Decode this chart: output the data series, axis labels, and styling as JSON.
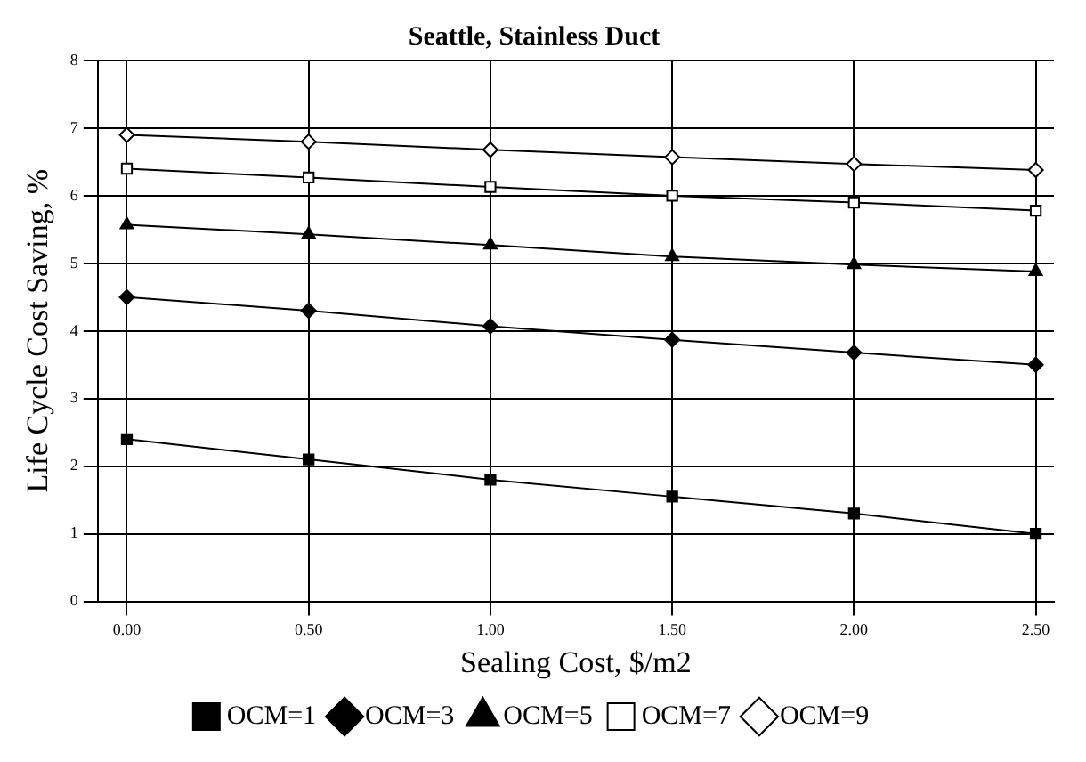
{
  "chart_data": {
    "type": "line",
    "title": "Seattle, Stainless Duct",
    "xlabel": "Sealing Cost, $/m2",
    "ylabel": "Life Cycle Cost Saving, %",
    "x": [
      0,
      0.5,
      1,
      1.5,
      2,
      2.5
    ],
    "xlim": [
      -0.08,
      2.55
    ],
    "xticks": [
      {
        "value": 0,
        "label": "0.00"
      },
      {
        "value": 0.5,
        "label": "0.50"
      },
      {
        "value": 1,
        "label": "1.00"
      },
      {
        "value": 1.5,
        "label": "1.50"
      },
      {
        "value": 2,
        "label": "2.00"
      },
      {
        "value": 2.5,
        "label": "2.50"
      }
    ],
    "ylim": [
      0,
      8
    ],
    "yticks": [
      0,
      1,
      2,
      3,
      4,
      5,
      6,
      7,
      8
    ],
    "grid": true,
    "legend": "bottom",
    "line_style": "solid",
    "series": [
      {
        "name": "OCM=1",
        "color": "#000000",
        "marker": "square",
        "values": [
          2.4,
          2.1,
          1.8,
          1.55,
          1.3,
          1.0
        ]
      },
      {
        "name": "OCM=3",
        "color": "#000000",
        "marker": "diamond",
        "values": [
          4.5,
          4.3,
          4.07,
          3.87,
          3.68,
          3.5
        ]
      },
      {
        "name": "OCM=5",
        "color": "#000000",
        "marker": "triangle",
        "values": [
          5.57,
          5.43,
          5.27,
          5.1,
          4.98,
          4.88
        ]
      },
      {
        "name": "OCM=7",
        "color": "#000000",
        "marker": "square-open",
        "values": [
          6.4,
          6.27,
          6.13,
          6.0,
          5.9,
          5.78
        ]
      },
      {
        "name": "OCM=9",
        "color": "#000000",
        "marker": "diamond-open",
        "values": [
          6.9,
          6.8,
          6.68,
          6.57,
          6.47,
          6.38
        ]
      }
    ]
  }
}
